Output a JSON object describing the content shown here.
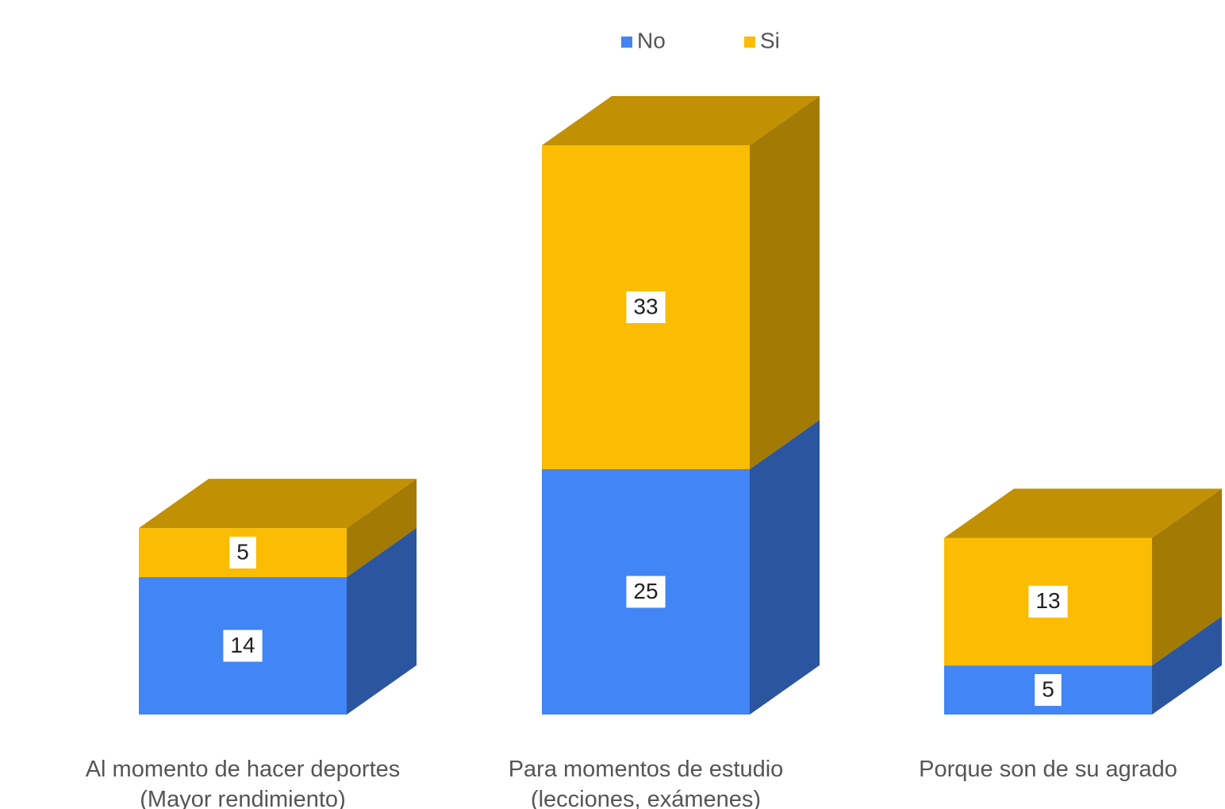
{
  "chart_data": {
    "type": "bar3d_stacked",
    "categories": [
      "Al momento de hacer deportes (Mayor rendimiento)",
      "Para momentos de estudio (lecciones, exámenes)",
      "Porque son de su agrado"
    ],
    "series": [
      {
        "name": "No",
        "color": "#4285f4",
        "values": [
          14,
          25,
          5
        ]
      },
      {
        "name": "Si",
        "color": "#fbbc04",
        "values": [
          5,
          33,
          13
        ]
      }
    ],
    "legend": "top"
  }
}
